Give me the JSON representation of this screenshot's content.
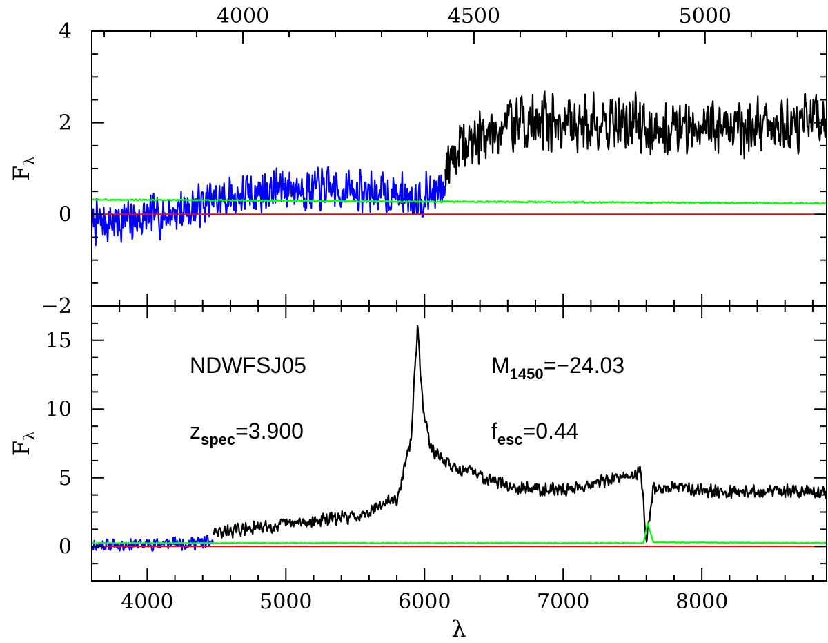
{
  "chart_data": [
    {
      "panel": "top",
      "type": "line",
      "xlabel": "",
      "ylabel": "F",
      "ylabel_sub": "λ",
      "xlim": [
        3600,
        8900
      ],
      "ylim": [
        -2,
        4
      ],
      "yticks": [
        {
          "value": -2,
          "label": "−2"
        },
        {
          "value": 0,
          "label": "0"
        },
        {
          "value": 2,
          "label": "2"
        },
        {
          "value": 4,
          "label": "4"
        }
      ],
      "top_axis": {
        "xlim": [
          3673,
          5263
        ],
        "ticks": [
          {
            "value": 4000,
            "label": "4000"
          },
          {
            "value": 4500,
            "label": "4500"
          },
          {
            "value": 5000,
            "label": "5000"
          }
        ]
      },
      "series": [
        {
          "name": "blue",
          "color": "#0000ff",
          "x_range": [
            3600,
            6150
          ],
          "level": [
            [
              3600,
              -0.2
            ],
            [
              4000,
              -0.1
            ],
            [
              4500,
              0.3
            ],
            [
              5000,
              0.6
            ],
            [
              5500,
              0.5
            ],
            [
              6000,
              0.4
            ],
            [
              6150,
              0.5
            ]
          ],
          "noise": 0.55,
          "seed": 7
        },
        {
          "name": "black",
          "color": "#000000",
          "x_range": [
            6150,
            8900
          ],
          "level": [
            [
              6150,
              1.2
            ],
            [
              6300,
              1.5
            ],
            [
              6600,
              2.0
            ],
            [
              7200,
              2.0
            ],
            [
              8000,
              1.9
            ],
            [
              8900,
              2.0
            ]
          ],
          "noise": 0.75,
          "seed": 19
        },
        {
          "name": "green",
          "color": "#00ff00",
          "x_range": [
            3600,
            8900
          ],
          "level": [
            [
              3600,
              0.32
            ],
            [
              6000,
              0.28
            ],
            [
              8900,
              0.24
            ]
          ],
          "noise": 0.02,
          "seed": 3
        },
        {
          "name": "red",
          "color": "#ff0000",
          "x_range": [
            3600,
            8900
          ],
          "level": [
            [
              3600,
              0
            ],
            [
              8900,
              0
            ]
          ],
          "noise": 0,
          "seed": 1
        }
      ]
    },
    {
      "panel": "bottom",
      "type": "line",
      "xlabel": "λ",
      "ylabel": "F",
      "ylabel_sub": "λ",
      "xlim": [
        3600,
        8900
      ],
      "ylim": [
        -2.5,
        17.5
      ],
      "xticks": [
        {
          "value": 4000,
          "label": "4000"
        },
        {
          "value": 5000,
          "label": "5000"
        },
        {
          "value": 6000,
          "label": "6000"
        },
        {
          "value": 7000,
          "label": "7000"
        },
        {
          "value": 8000,
          "label": "8000"
        }
      ],
      "yticks": [
        {
          "value": 0,
          "label": "0"
        },
        {
          "value": 5,
          "label": "5"
        },
        {
          "value": 10,
          "label": "10"
        },
        {
          "value": 15,
          "label": "15"
        }
      ],
      "annotations": {
        "name": "NDWFSJ05",
        "z_main": "z",
        "z_sub": "spec",
        "z_val": "=3.900",
        "m_main": "M",
        "m_sub": "1450",
        "m_val": "=−24.03",
        "f_main": "f",
        "f_sub": "esc",
        "f_val": "=0.44"
      },
      "series": [
        {
          "name": "blue",
          "color": "#0000ff",
          "x_range": [
            3600,
            4480
          ],
          "level": [
            [
              3600,
              0.1
            ],
            [
              4480,
              0.3
            ]
          ],
          "noise": 0.55,
          "seed": 11
        },
        {
          "name": "black",
          "color": "#000000",
          "x_range": [
            4480,
            8900
          ],
          "level": [
            [
              4480,
              1.0
            ],
            [
              5000,
              1.6
            ],
            [
              5500,
              2.2
            ],
            [
              5800,
              3.5
            ],
            [
              5900,
              7.5
            ],
            [
              5950,
              16.0
            ],
            [
              5990,
              10.0
            ],
            [
              6050,
              7.0
            ],
            [
              6200,
              5.8
            ],
            [
              6400,
              5.2
            ],
            [
              6600,
              4.4
            ],
            [
              7000,
              4.1
            ],
            [
              7500,
              5.2
            ],
            [
              7560,
              5.5
            ],
            [
              7600,
              0.5
            ],
            [
              7650,
              4.2
            ],
            [
              7800,
              4.3
            ],
            [
              8200,
              4.0
            ],
            [
              8900,
              4.0
            ]
          ],
          "noise": 0.55,
          "seed": 29
        },
        {
          "name": "green",
          "color": "#00ff00",
          "x_range": [
            3600,
            8900
          ],
          "level": [
            [
              3600,
              0.25
            ],
            [
              7580,
              0.25
            ],
            [
              7610,
              1.7
            ],
            [
              7650,
              0.3
            ],
            [
              8900,
              0.25
            ]
          ],
          "noise": 0.03,
          "seed": 5
        },
        {
          "name": "red",
          "color": "#ff0000",
          "x_range": [
            3600,
            8900
          ],
          "level": [
            [
              3600,
              0
            ],
            [
              8900,
              0
            ]
          ],
          "noise": 0,
          "seed": 1
        }
      ]
    }
  ]
}
